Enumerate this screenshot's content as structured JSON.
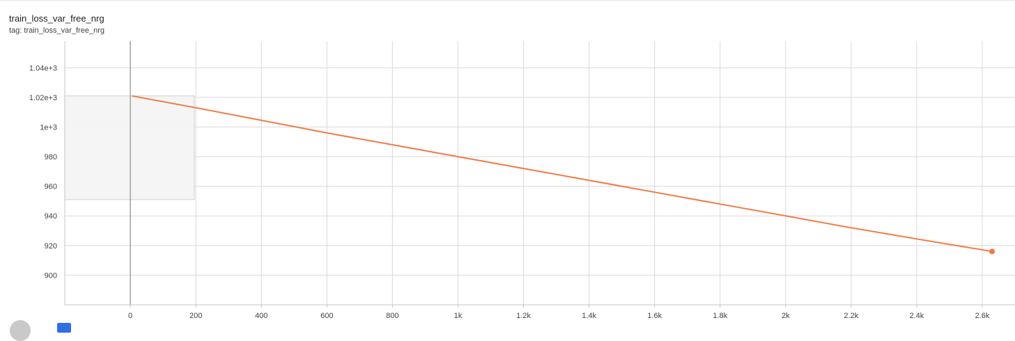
{
  "card": {
    "title": "train_loss_var_free_nrg",
    "tag": "tag: train_loss_var_free_nrg"
  },
  "controls": {
    "left_icon": "circle-button-icon",
    "right_icon": "checkbox-icon"
  },
  "chart_data": {
    "type": "line",
    "xlim": [
      -200,
      2700
    ],
    "ylim": [
      880,
      1058
    ],
    "x_ticks": [
      0,
      200,
      400,
      600,
      800,
      1000,
      1200,
      1400,
      1600,
      1800,
      2000,
      2200,
      2400,
      2600
    ],
    "x_tick_labels": [
      "0",
      "200",
      "400",
      "600",
      "800",
      "1k",
      "1.2k",
      "1.4k",
      "1.6k",
      "1.8k",
      "2k",
      "2.2k",
      "2.4k",
      "2.6k"
    ],
    "y_ticks": [
      900,
      920,
      940,
      960,
      980,
      1000,
      1020,
      1040
    ],
    "y_tick_labels": [
      "900",
      "920",
      "940",
      "960",
      "980",
      "1e+3",
      "1.02e+3",
      "1.04e+3"
    ],
    "grid": true,
    "series": [
      {
        "color": "#f07a45",
        "x": [
          5,
          200,
          400,
          600,
          800,
          1000,
          1200,
          1400,
          1600,
          1800,
          2000,
          2200,
          2400,
          2630
        ],
        "y": [
          1021,
          1013,
          1004.5,
          996,
          988,
          980,
          972,
          964,
          956,
          948,
          940,
          932,
          924.5,
          916
        ]
      }
    ],
    "highlight_box": {
      "x0": -200,
      "x1": 195,
      "y0": 951,
      "y1": 1021
    },
    "cursor_x": 0
  }
}
